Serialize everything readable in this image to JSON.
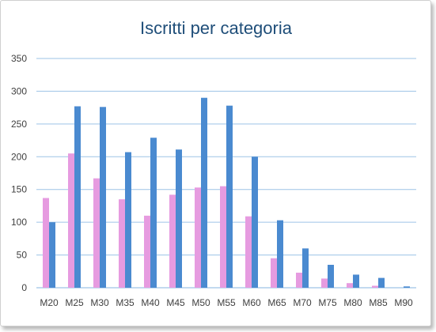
{
  "chart_data": {
    "type": "bar",
    "title": "Iscritti per categoria",
    "xlabel": "",
    "ylabel": "",
    "ylim": [
      0,
      350
    ],
    "yticks": [
      0,
      50,
      100,
      150,
      200,
      250,
      300,
      350
    ],
    "grid": true,
    "legend": "none",
    "categories": [
      "M20",
      "M25",
      "M30",
      "M35",
      "M40",
      "M45",
      "M50",
      "M55",
      "M60",
      "M65",
      "M70",
      "M75",
      "M80",
      "M85",
      "M90"
    ],
    "series": [
      {
        "color": "#e69be0",
        "values": [
          137,
          205,
          167,
          135,
          110,
          142,
          153,
          155,
          109,
          45,
          23,
          14,
          7,
          3,
          0
        ]
      },
      {
        "color": "#4a8ad0",
        "values": [
          100,
          277,
          276,
          207,
          229,
          211,
          290,
          278,
          200,
          103,
          60,
          35,
          20,
          15,
          2
        ]
      }
    ]
  },
  "colors": {
    "title": "#1f4e79",
    "grid": "#9dc3e6",
    "axis_text": "#404040"
  }
}
